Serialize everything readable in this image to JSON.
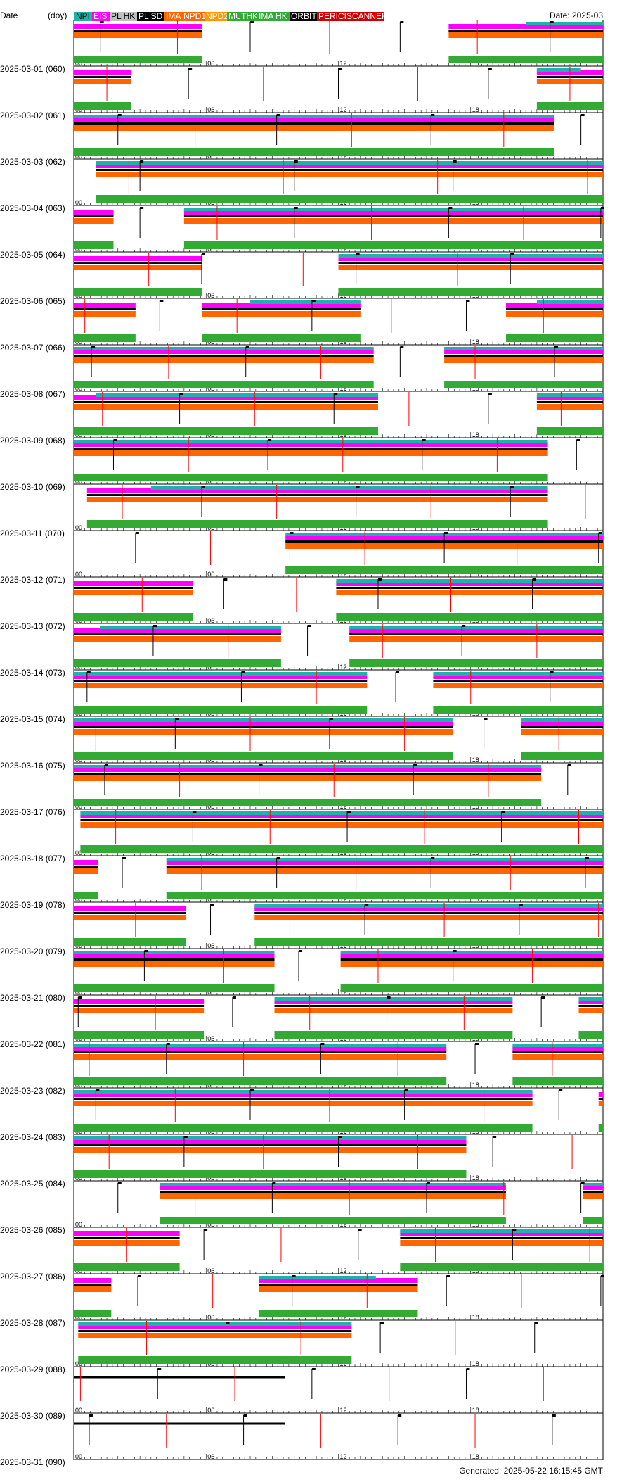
{
  "header": {
    "left_label": "Date",
    "unit_label": "(doy)",
    "right_label": "Date: 2025-03"
  },
  "footer": {
    "generated": "Generated: 2025-05-22 16:15:45 GMT"
  },
  "legend": [
    {
      "label": "NPI",
      "bg": "#20b2aa",
      "fg": "#000000"
    },
    {
      "label": "EIS",
      "bg": "#ff00ff",
      "fg": "#ffffff"
    },
    {
      "label": "PL HK",
      "bg": "#c0c0c0",
      "fg": "#000000"
    },
    {
      "label": "PL SD",
      "bg": "#000000",
      "fg": "#ffffff"
    },
    {
      "label": "IMA",
      "bg": "#ff6600",
      "fg": "#ffffff"
    },
    {
      "label": "NPD1",
      "bg": "#ff6600",
      "fg": "#ffffff"
    },
    {
      "label": "NPD2",
      "bg": "#ff9900",
      "fg": "#ffffff"
    },
    {
      "label": "MU",
      "bg": "#33aa33",
      "fg": "#ffffff"
    },
    {
      "label": "THK",
      "bg": "#33aa33",
      "fg": "#ffffff"
    },
    {
      "label": "IMA HK",
      "bg": "#33aa33",
      "fg": "#ffffff"
    },
    {
      "label": "ORBIT",
      "bg": "#000000",
      "fg": "#ffffff"
    },
    {
      "label": "PERICISCANNER",
      "bg": "#cc0000",
      "fg": "#ffffff"
    }
  ],
  "colors": {
    "npi": "#20b2aa",
    "eis": "#ff00ff",
    "plsd": "#000000",
    "ima": "#ff6600",
    "hk": "#33aa33",
    "orbit": "#000000",
    "peri": "#ff0000"
  },
  "chart_data": {
    "type": "timeline",
    "x_unit": "hour of day (UTC)",
    "xlim": [
      0,
      24
    ],
    "hour_ticks": [
      "00",
      "06",
      "12",
      "18"
    ],
    "series_order": [
      "NPI",
      "EIS",
      "PL SD",
      "IMA",
      "HK",
      "ORBIT",
      "PERICISCANNER"
    ],
    "days": [
      {
        "date": "2025-03-01",
        "doy": "060",
        "on": [
          [
            0,
            5.8
          ],
          [
            17,
            24
          ]
        ],
        "npi": [
          [
            20.5,
            24
          ]
        ],
        "orbit": [
          1.2,
          8.0,
          14.8,
          21.6
        ],
        "peri": [
          4.7,
          11.6,
          18.3
        ]
      },
      {
        "date": "2025-03-02",
        "doy": "061",
        "on": [
          [
            0,
            2.6
          ],
          [
            21,
            24
          ]
        ],
        "npi": [
          [
            21,
            23
          ]
        ],
        "orbit": [
          5.2,
          12.0,
          18.8
        ],
        "peri": [
          1.5,
          8.6,
          15.6,
          22.5
        ]
      },
      {
        "date": "2025-03-03",
        "doy": "062",
        "on": [
          [
            0,
            21.8
          ]
        ],
        "npi": [
          [
            0,
            21.8
          ]
        ],
        "orbit": [
          2.0,
          9.2,
          16.2,
          23.0
        ],
        "peri": [
          5.5,
          12.6,
          19.5
        ]
      },
      {
        "date": "2025-03-04",
        "doy": "063",
        "on": [
          [
            1,
            24
          ]
        ],
        "npi": [
          [
            1,
            24
          ]
        ],
        "orbit": [
          3.0,
          10.0,
          17.2
        ],
        "peri": [
          2.5,
          9.5,
          16.5,
          23.3
        ]
      },
      {
        "date": "2025-03-05",
        "doy": "064",
        "on": [
          [
            0,
            1.8
          ],
          [
            5,
            24
          ]
        ],
        "npi": [
          [
            5,
            24
          ]
        ],
        "orbit": [
          3.0,
          10.0,
          17.0,
          23.9
        ],
        "peri": [
          6.5,
          13.5,
          20.4
        ]
      },
      {
        "date": "2025-03-06",
        "doy": "065",
        "on": [
          [
            0,
            5.8
          ],
          [
            12,
            24
          ]
        ],
        "npi": [
          [
            12,
            24
          ]
        ],
        "orbit": [
          5.8,
          12.8,
          19.8
        ],
        "peri": [
          3.4,
          10.4,
          17.4
        ]
      },
      {
        "date": "2025-03-07",
        "doy": "066",
        "on": [
          [
            0,
            2.8
          ],
          [
            5.8,
            13
          ],
          [
            19.6,
            24
          ]
        ],
        "npi": [
          [
            8,
            13
          ],
          [
            21,
            24
          ]
        ],
        "orbit": [
          3.9,
          10.8,
          17.8
        ],
        "peri": [
          0.5,
          7.4,
          14.4,
          21.3
        ]
      },
      {
        "date": "2025-03-08",
        "doy": "067",
        "on": [
          [
            0,
            13.6
          ],
          [
            16.8,
            24
          ]
        ],
        "npi": [
          [
            0,
            13.6
          ],
          [
            16.8,
            24
          ]
        ],
        "orbit": [
          0.8,
          7.8,
          14.8,
          21.8
        ],
        "peri": [
          4.3,
          11.2,
          18.2
        ]
      },
      {
        "date": "2025-03-09",
        "doy": "068",
        "on": [
          [
            0,
            13.8
          ],
          [
            21,
            24
          ]
        ],
        "npi": [
          [
            1,
            13.8
          ],
          [
            21,
            24
          ]
        ],
        "orbit": [
          4.8,
          11.8,
          18.8
        ],
        "peri": [
          1.3,
          8.2,
          15.2,
          22.1
        ]
      },
      {
        "date": "2025-03-10",
        "doy": "069",
        "on": [
          [
            0,
            21.5
          ]
        ],
        "npi": [
          [
            0,
            21.5
          ]
        ],
        "orbit": [
          1.8,
          8.8,
          15.8,
          22.8
        ],
        "peri": [
          5.2,
          12.2,
          19.2
        ]
      },
      {
        "date": "2025-03-11",
        "doy": "070",
        "on": [
          [
            0.6,
            21.5
          ]
        ],
        "npi": [
          [
            3.5,
            21.5
          ]
        ],
        "orbit": [
          5.8,
          12.8,
          19.8
        ],
        "peri": [
          2.2,
          9.2,
          16.2,
          23.2
        ]
      },
      {
        "date": "2025-03-12",
        "doy": "071",
        "on": [
          [
            9.6,
            24
          ]
        ],
        "npi": [
          [
            9.6,
            24
          ]
        ],
        "orbit": [
          2.8,
          9.8,
          16.8,
          23.8
        ],
        "peri": [
          6.2,
          13.2,
          20.1
        ]
      },
      {
        "date": "2025-03-13",
        "doy": "072",
        "on": [
          [
            0,
            5.4
          ],
          [
            11.9,
            24
          ]
        ],
        "npi": [
          [
            11.9,
            24
          ]
        ],
        "orbit": [
          6.8,
          13.8,
          20.8
        ],
        "peri": [
          3.1,
          10.1,
          17.1
        ]
      },
      {
        "date": "2025-03-14",
        "doy": "073",
        "on": [
          [
            0,
            9.4
          ],
          [
            12.5,
            24
          ]
        ],
        "npi": [
          [
            1.2,
            9.4
          ],
          [
            12.5,
            24
          ]
        ],
        "orbit": [
          3.6,
          10.6,
          17.6
        ],
        "peri": [
          7.0,
          14.0,
          21.0
        ]
      },
      {
        "date": "2025-03-15",
        "doy": "074",
        "on": [
          [
            0,
            13.3
          ],
          [
            16.3,
            24
          ]
        ],
        "npi": [
          [
            0,
            13.3
          ],
          [
            16.3,
            24
          ]
        ],
        "orbit": [
          0.6,
          7.6,
          14.6,
          21.6
        ],
        "peri": [
          4.0,
          11.0,
          18.0
        ]
      },
      {
        "date": "2025-03-16",
        "doy": "075",
        "on": [
          [
            0,
            17.2
          ],
          [
            20.3,
            24
          ]
        ],
        "npi": [
          [
            0,
            17.2
          ],
          [
            20.3,
            24
          ]
        ],
        "orbit": [
          4.6,
          11.6,
          18.6
        ],
        "peri": [
          1.0,
          8.0,
          15.0,
          22.0
        ]
      },
      {
        "date": "2025-03-17",
        "doy": "076",
        "on": [
          [
            0,
            21.2
          ]
        ],
        "npi": [
          [
            0,
            21.2
          ]
        ],
        "orbit": [
          1.4,
          8.4,
          15.4,
          22.4
        ],
        "peri": [
          4.8,
          11.8,
          18.8
        ]
      },
      {
        "date": "2025-03-18",
        "doy": "077",
        "on": [
          [
            0.3,
            24
          ]
        ],
        "npi": [
          [
            0.3,
            24
          ]
        ],
        "orbit": [
          5.4,
          12.4,
          19.4
        ],
        "peri": [
          1.9,
          8.9,
          15.9,
          22.9
        ]
      },
      {
        "date": "2025-03-19",
        "doy": "078",
        "on": [
          [
            0,
            1.1
          ],
          [
            4.2,
            24
          ]
        ],
        "npi": [
          [
            4.2,
            24
          ]
        ],
        "orbit": [
          2.2,
          9.2,
          16.2,
          23.2
        ],
        "peri": [
          5.8,
          12.8,
          19.8
        ]
      },
      {
        "date": "2025-03-20",
        "doy": "079",
        "on": [
          [
            0,
            5.1
          ],
          [
            8.2,
            24
          ]
        ],
        "npi": [
          [
            8.2,
            24
          ]
        ],
        "orbit": [
          6.2,
          13.2,
          20.2
        ],
        "peri": [
          2.8,
          9.8,
          16.8,
          23.8
        ]
      },
      {
        "date": "2025-03-21",
        "doy": "080",
        "on": [
          [
            0,
            9.1
          ],
          [
            12.1,
            24
          ]
        ],
        "npi": [
          [
            0,
            9.1
          ],
          [
            12.1,
            24
          ]
        ],
        "orbit": [
          3.2,
          10.2,
          17.2
        ],
        "peri": [
          6.8,
          13.8,
          20.8
        ]
      },
      {
        "date": "2025-03-22",
        "doy": "081",
        "on": [
          [
            0,
            5.9
          ],
          [
            9.1,
            19.9
          ],
          [
            22.9,
            24
          ]
        ],
        "npi": [
          [
            9.1,
            19.9
          ],
          [
            22.9,
            24
          ]
        ],
        "orbit": [
          0.2,
          7.2,
          14.2,
          21.2
        ],
        "peri": [
          3.7,
          10.7,
          17.7
        ]
      },
      {
        "date": "2025-03-23",
        "doy": "082",
        "on": [
          [
            0,
            16.9
          ],
          [
            19.9,
            24
          ]
        ],
        "npi": [
          [
            0,
            16.9
          ],
          [
            19.9,
            24
          ]
        ],
        "orbit": [
          4.2,
          11.2,
          18.2
        ],
        "peri": [
          0.7,
          7.7,
          14.7,
          21.7
        ]
      },
      {
        "date": "2025-03-24",
        "doy": "083",
        "on": [
          [
            0,
            20.8
          ],
          [
            23.8,
            24
          ]
        ],
        "npi": [
          [
            0,
            20.8
          ]
        ],
        "orbit": [
          1.0,
          8.0,
          15.0,
          22.0
        ],
        "peri": [
          4.6,
          11.6,
          18.6
        ]
      },
      {
        "date": "2025-03-25",
        "doy": "084",
        "on": [
          [
            0,
            17.8
          ]
        ],
        "npi": [
          [
            0,
            17.8
          ]
        ],
        "orbit": [
          5.0,
          12.0,
          19.0
        ],
        "peri": [
          1.6,
          8.6,
          15.6,
          22.6
        ]
      },
      {
        "date": "2025-03-26",
        "doy": "085",
        "on": [
          [
            3.9,
            19.6
          ],
          [
            23.1,
            24
          ]
        ],
        "npi": [
          [
            3.9,
            19.6
          ],
          [
            23.1,
            24
          ]
        ],
        "orbit": [
          2.0,
          9.0,
          16.0,
          23.0
        ],
        "peri": [
          5.5,
          12.5,
          19.5
        ]
      },
      {
        "date": "2025-03-27",
        "doy": "086",
        "on": [
          [
            0,
            4.8
          ],
          [
            14.8,
            24
          ]
        ],
        "npi": [
          [
            14.8,
            24
          ]
        ],
        "orbit": [
          5.9,
          12.9,
          19.9
        ],
        "peri": [
          2.4,
          9.4,
          16.4,
          23.4
        ]
      },
      {
        "date": "2025-03-28",
        "doy": "087",
        "on": [
          [
            0,
            1.7
          ],
          [
            8.4,
            15.6
          ]
        ],
        "npi": [
          [
            8.4,
            13.7
          ]
        ],
        "orbit": [
          2.9,
          9.9,
          16.9,
          23.9
        ],
        "peri": [
          6.3,
          13.3,
          20.3
        ]
      },
      {
        "date": "2025-03-29",
        "doy": "088",
        "on": [
          [
            0.2,
            12.6
          ]
        ],
        "npi": [
          [
            0.2,
            12.6
          ]
        ],
        "orbit": [
          6.9,
          13.9,
          20.9
        ],
        "peri": [
          3.3,
          10.3,
          17.3
        ]
      },
      {
        "date": "2025-03-30",
        "doy": "089",
        "on": [],
        "npi": [],
        "orbit": [
          3.8,
          10.8,
          17.8
        ],
        "peri": [
          0.3,
          7.3,
          14.3,
          21.3
        ]
      },
      {
        "date": "2025-03-31",
        "doy": "090",
        "on": [],
        "npi": [],
        "orbit": [
          0.7,
          7.7,
          14.7,
          21.7
        ],
        "peri": [
          4.2,
          11.2,
          18.2
        ]
      }
    ]
  }
}
